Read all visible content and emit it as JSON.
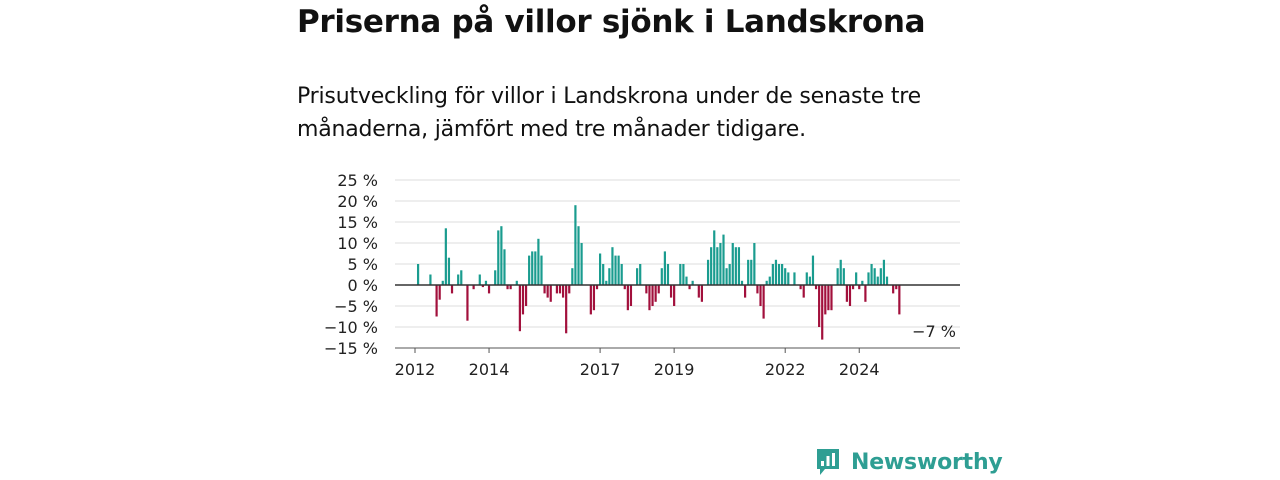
{
  "title": "Priserna på villor sjönk i Landskrona",
  "subtitle": "Prisutveckling för villor i Landskrona under de senaste tre månaderna, jämfört med tre månader tidigare.",
  "brand": {
    "name": "Newsworthy",
    "icon": "newsworthy-logo-icon",
    "color": "#2e9e93"
  },
  "colors": {
    "positive": "#1a9c8f",
    "negative": "#a2103c",
    "grid": "#dddddd",
    "zero": "#333333"
  },
  "chart_data": {
    "type": "bar",
    "ylim": [
      -15,
      25
    ],
    "y_ticks": [
      25,
      20,
      15,
      10,
      5,
      0,
      -5,
      -10,
      -15
    ],
    "y_tick_labels": [
      "25 %",
      "20 %",
      "15 %",
      "10 %",
      "5 %",
      "0 %",
      "−10 %",
      "−15 %"
    ],
    "y_tick_labels_full": [
      "25 %",
      "20 %",
      "15 %",
      "10 %",
      "5 %",
      "0 %",
      "−5 %",
      "−10 %",
      "−15 %"
    ],
    "x_tick_labels": [
      "2012",
      "2014",
      "2017",
      "2019",
      "2022",
      "2024"
    ],
    "x_tick_months": [
      0,
      24,
      60,
      84,
      120,
      144
    ],
    "start": "2012-01",
    "end": "2025-06",
    "values": [
      0,
      5,
      0,
      0,
      0,
      2.5,
      0,
      -7.5,
      -3.5,
      1,
      13.5,
      6.5,
      -2,
      0,
      2.5,
      3.5,
      0,
      -8.5,
      0,
      -1,
      0,
      2.5,
      -0.5,
      1,
      -2,
      0,
      3.5,
      13,
      14,
      8.5,
      -1,
      -1,
      0,
      1,
      -11,
      -7,
      -5,
      7,
      8,
      8,
      11,
      7,
      -2,
      -3,
      -4,
      0,
      -2,
      -2,
      -3,
      -11.5,
      -2,
      4,
      19,
      14,
      10,
      0,
      0,
      -7,
      -6,
      -1,
      7.5,
      5,
      1,
      4,
      9,
      7,
      7,
      5,
      -1,
      -6,
      -5,
      0,
      4,
      5,
      0,
      -2,
      -6,
      -5,
      -4,
      -2,
      4,
      8,
      5,
      -3,
      -5,
      0,
      5,
      5,
      2,
      -1,
      1,
      0,
      -3,
      -4,
      0,
      6,
      9,
      13,
      9,
      10,
      12,
      4,
      5,
      10,
      9,
      9,
      1,
      -3,
      6,
      6,
      10,
      -2,
      -5,
      -8,
      1,
      2,
      5,
      6,
      5,
      5,
      4,
      3,
      0,
      3,
      0,
      -1,
      -3,
      3,
      2,
      7,
      -1,
      -10,
      -13,
      -7,
      -6,
      -6,
      0,
      4,
      6,
      4,
      -4,
      -5,
      -1,
      3,
      -1,
      1,
      -4,
      3,
      5,
      4,
      2,
      4,
      6,
      2,
      0,
      -2,
      -1,
      -7
    ],
    "last_value_label": "−7 %"
  }
}
